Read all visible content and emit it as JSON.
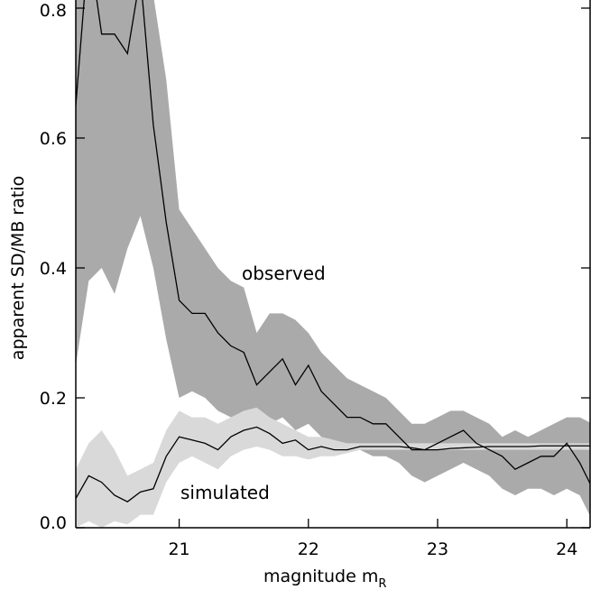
{
  "chart_data": {
    "type": "band-line",
    "x_label": "magnitude m",
    "x_label_sub": "R",
    "y_label": "apparent SD/MB ratio",
    "x": [
      20.2,
      20.3,
      20.4,
      20.5,
      20.6,
      20.7,
      20.8,
      20.9,
      21.0,
      21.1,
      21.2,
      21.3,
      21.4,
      21.5,
      21.6,
      21.7,
      21.8,
      21.9,
      22.0,
      22.1,
      22.2,
      22.3,
      22.4,
      22.5,
      22.6,
      22.7,
      22.8,
      22.9,
      23.0,
      23.1,
      23.2,
      23.3,
      23.4,
      23.5,
      23.6,
      23.7,
      23.8,
      23.9,
      24.0,
      24.1,
      24.2
    ],
    "series": [
      {
        "name": "observed",
        "color": "#000000",
        "band_color": "#aaaaaa",
        "values": [
          0.65,
          0.9,
          0.76,
          0.76,
          0.73,
          0.85,
          0.62,
          0.47,
          0.35,
          0.33,
          0.33,
          0.3,
          0.28,
          0.27,
          0.22,
          0.24,
          0.26,
          0.22,
          0.25,
          0.21,
          0.19,
          0.17,
          0.17,
          0.16,
          0.16,
          0.14,
          0.12,
          0.12,
          0.13,
          0.14,
          0.15,
          0.13,
          0.12,
          0.11,
          0.09,
          0.1,
          0.11,
          0.11,
          0.13,
          0.1,
          0.06
        ],
        "upper": [
          0.9,
          0.95,
          0.95,
          0.95,
          0.9,
          0.9,
          0.82,
          0.69,
          0.49,
          0.46,
          0.43,
          0.4,
          0.38,
          0.37,
          0.3,
          0.33,
          0.33,
          0.32,
          0.3,
          0.27,
          0.25,
          0.23,
          0.22,
          0.21,
          0.2,
          0.18,
          0.16,
          0.16,
          0.17,
          0.18,
          0.18,
          0.17,
          0.16,
          0.14,
          0.15,
          0.14,
          0.15,
          0.16,
          0.17,
          0.17,
          0.16
        ],
        "lower": [
          0.25,
          0.38,
          0.4,
          0.36,
          0.43,
          0.48,
          0.4,
          0.29,
          0.2,
          0.21,
          0.2,
          0.18,
          0.17,
          0.17,
          0.14,
          0.16,
          0.17,
          0.15,
          0.16,
          0.14,
          0.13,
          0.12,
          0.12,
          0.11,
          0.11,
          0.1,
          0.08,
          0.07,
          0.08,
          0.09,
          0.1,
          0.09,
          0.08,
          0.06,
          0.05,
          0.06,
          0.06,
          0.05,
          0.06,
          0.05,
          0.01
        ]
      },
      {
        "name": "simulated",
        "color": "#000000",
        "band_color": "#d9d9d9",
        "values": [
          0.045,
          0.08,
          0.07,
          0.05,
          0.04,
          0.055,
          0.06,
          0.11,
          0.14,
          0.135,
          0.13,
          0.12,
          0.14,
          0.15,
          0.155,
          0.145,
          0.13,
          0.135,
          0.12,
          0.125,
          0.12,
          0.12,
          0.125,
          0.125,
          0.125,
          0.125,
          0.123,
          0.12,
          0.12,
          0.122,
          0.123,
          0.124,
          0.125,
          0.125,
          0.125,
          0.125,
          0.126,
          0.126,
          0.126,
          0.126,
          0.126
        ],
        "upper": [
          0.09,
          0.13,
          0.15,
          0.12,
          0.08,
          0.09,
          0.1,
          0.15,
          0.18,
          0.17,
          0.17,
          0.16,
          0.17,
          0.18,
          0.185,
          0.17,
          0.16,
          0.15,
          0.14,
          0.14,
          0.135,
          0.13,
          0.13,
          0.13,
          0.13,
          0.13,
          0.13,
          0.13,
          0.13,
          0.13,
          0.13,
          0.13,
          0.13,
          0.13,
          0.13,
          0.13,
          0.13,
          0.13,
          0.13,
          0.13,
          0.13
        ],
        "lower": [
          0.0,
          0.01,
          0.0,
          0.01,
          0.005,
          0.02,
          0.02,
          0.07,
          0.1,
          0.11,
          0.1,
          0.09,
          0.11,
          0.12,
          0.125,
          0.12,
          0.11,
          0.11,
          0.105,
          0.11,
          0.11,
          0.115,
          0.12,
          0.12,
          0.12,
          0.12,
          0.12,
          0.12,
          0.12,
          0.12,
          0.12,
          0.12,
          0.12,
          0.12,
          0.12,
          0.12,
          0.12,
          0.12,
          0.12,
          0.12,
          0.12
        ]
      }
    ],
    "xlim": [
      20.2,
      24.18
    ],
    "ylim": [
      0,
      0.8
    ],
    "xticks": [
      21,
      22,
      23,
      24
    ],
    "yticks": [
      {
        "value": 0,
        "label": "0.0"
      },
      0.2,
      0.4,
      0.6,
      0.8
    ]
  }
}
